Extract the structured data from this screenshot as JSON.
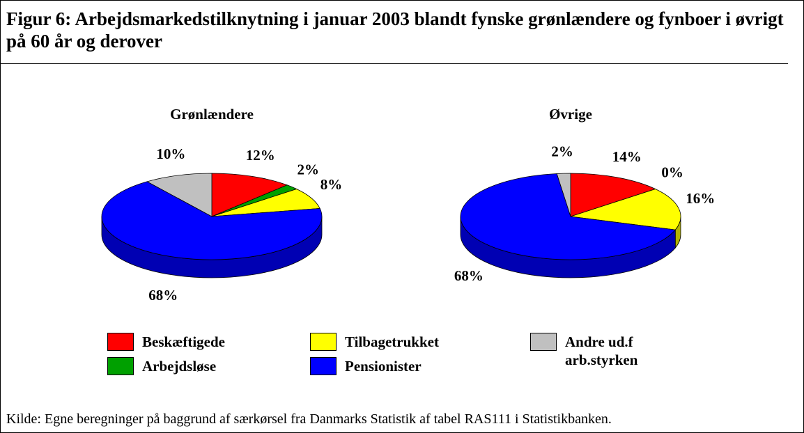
{
  "title": "Figur 6: Arbejdsmarkedstilknytning i januar 2003 blandt fynske grønlændere og fynboer i øvrigt på 60 år og derover",
  "source": "Kilde: Egne beregninger på baggrund af særkørsel fra Danmarks Statistik af tabel RAS111 i Statistikbanken.",
  "chart_data": {
    "type": "pie",
    "categories": [
      "Beskæftigede",
      "Arbejdsløse",
      "Tilbagetrukket",
      "Pensionister",
      "Andre ud.f arb.styrken"
    ],
    "colors": [
      "#ff0000",
      "#00a000",
      "#ffff00",
      "#0000ff",
      "#c0c0c0"
    ],
    "pies": [
      {
        "title": "Grønlændere",
        "values": [
          12,
          2,
          8,
          68,
          10
        ],
        "value_labels": [
          "12%",
          "2%",
          "8%",
          "68%",
          "10%"
        ]
      },
      {
        "title": "Øvrige",
        "values": [
          14,
          0,
          16,
          68,
          2
        ],
        "value_labels": [
          "14%",
          "0%",
          "16%",
          "68%",
          "2%"
        ]
      }
    ]
  }
}
